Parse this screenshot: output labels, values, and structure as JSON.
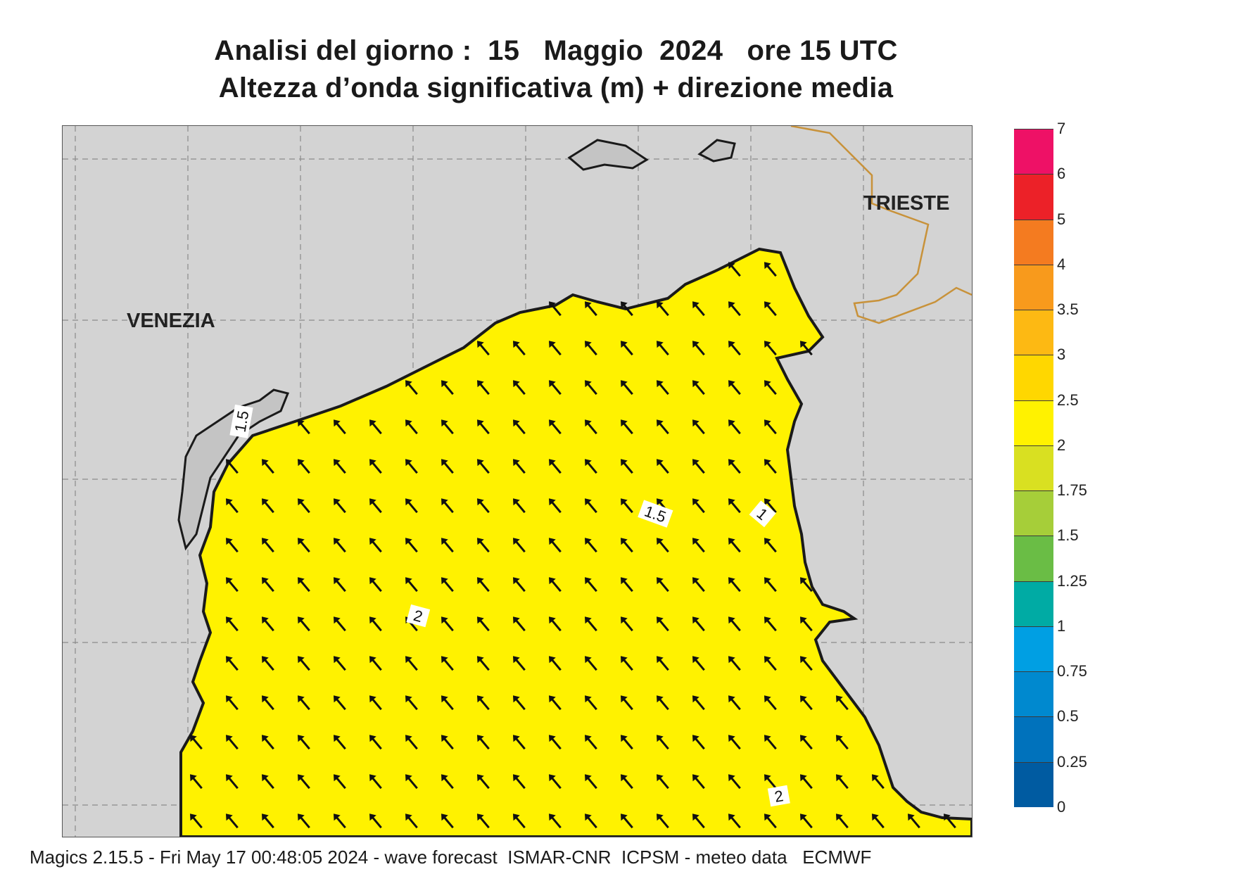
{
  "title": {
    "line1": "Analisi del giorno :  15   Maggio  2024   ore 15 UTC",
    "line2": "Altezza d’onda significativa (m) + direzione media"
  },
  "map": {
    "places": {
      "venezia": "VENEZIA",
      "trieste": "TRIESTE"
    },
    "contour_labels": [
      "1.5",
      "1.5",
      "1",
      "2",
      "2"
    ],
    "background_color": "#d3d3d3",
    "coast_color": "#1a1a1a",
    "border_color": "#c8923a",
    "arrow_direction": "north-west"
  },
  "legend": {
    "labels": [
      "7",
      "6",
      "5",
      "4",
      "3.5",
      "3",
      "2.5",
      "2",
      "1.75",
      "1.5",
      "1.25",
      "1",
      "0.75",
      "0.5",
      "0.25",
      "0"
    ],
    "colors": [
      "#ee1166",
      "#ec2128",
      "#f47b20",
      "#f89a1c",
      "#fdb913",
      "#ffd700",
      "#fff200",
      "#d9e021",
      "#a6ce39",
      "#6abd45",
      "#00aba4",
      "#009fe3",
      "#0089cf",
      "#0072bc",
      "#005ba1"
    ]
  },
  "footer": "Magics 2.15.5 - Fri May 17 00:48:05 2024 - wave forecast  ISMAR-CNR  ICPSM - meteo data   ECMWF"
}
